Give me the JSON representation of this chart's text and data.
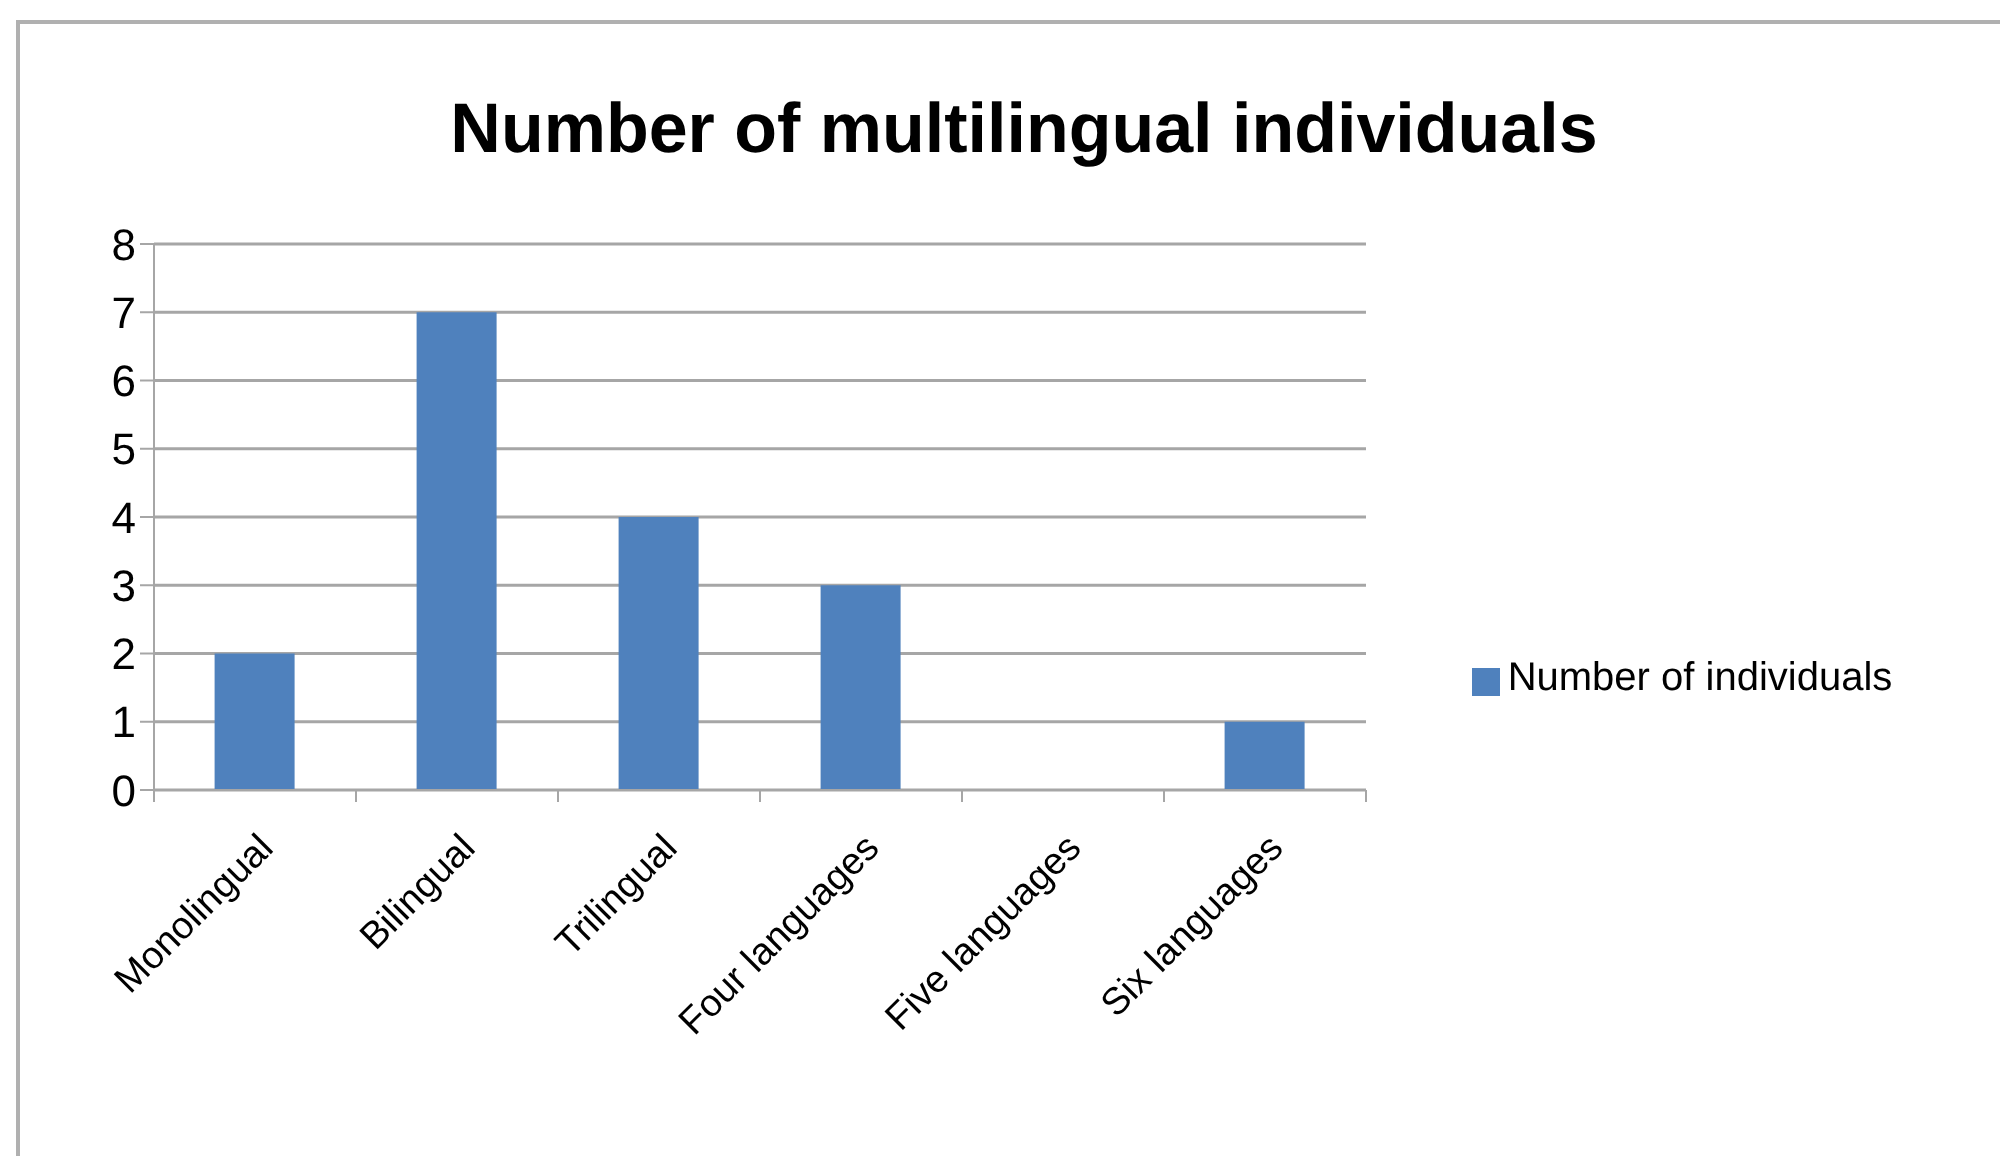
{
  "chart_data": {
    "type": "bar",
    "title": "Number of multilingual individuals",
    "categories": [
      "Monolingual",
      "Bilingual",
      "Trilingual",
      "Four languages",
      "Five languages",
      "Six languages"
    ],
    "series": [
      {
        "name": "Number of individuals",
        "color": "#4f81bd",
        "values": [
          2,
          7,
          4,
          3,
          0,
          1
        ]
      }
    ],
    "ylim": [
      0,
      8
    ],
    "yticks": [
      0,
      1,
      2,
      3,
      4,
      5,
      6,
      7,
      8
    ],
    "grid": "y",
    "legend": "right"
  }
}
